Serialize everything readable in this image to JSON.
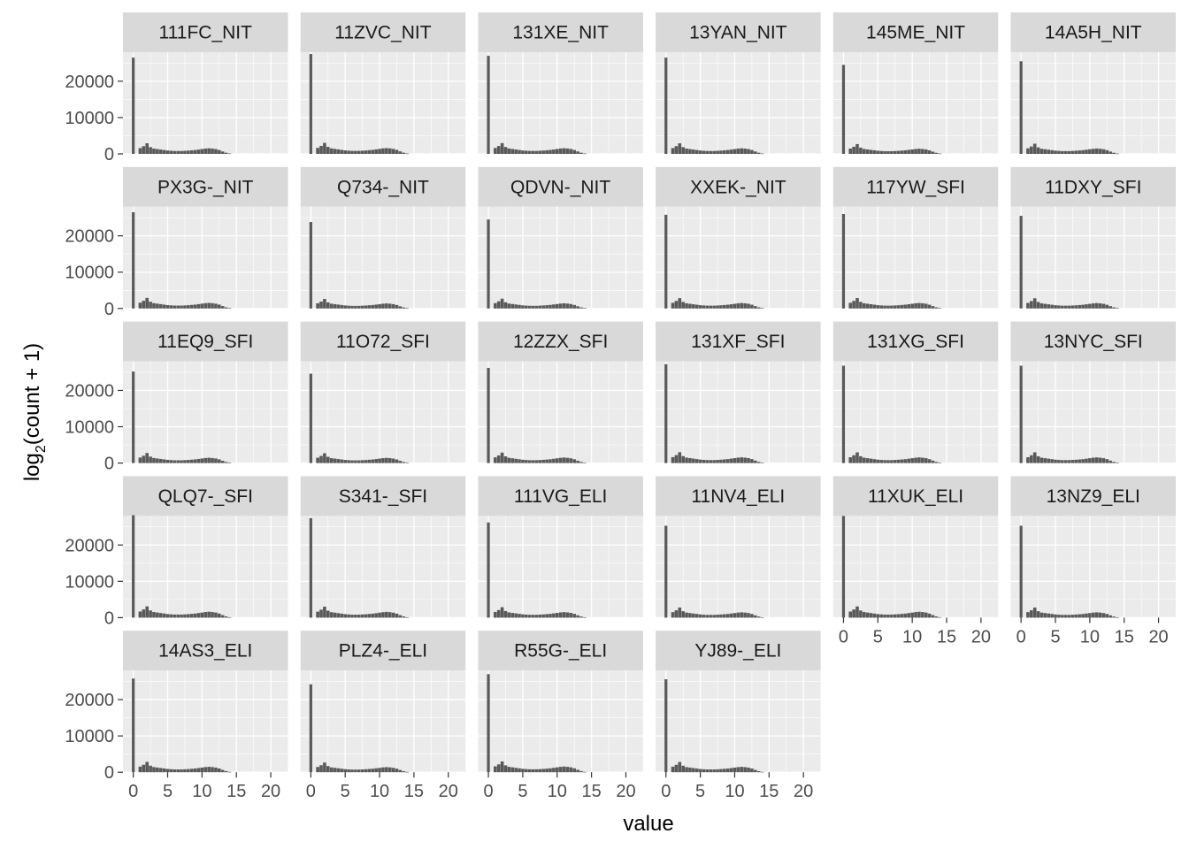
{
  "chart_data": {
    "type": "bar",
    "chart_kind": "faceted histogram",
    "xlabel": "value",
    "ylabel_base": "log",
    "ylabel_subscript": "2",
    "ylabel_rest": "(count + 1)",
    "x_ticks": [
      "0",
      "5",
      "10",
      "15",
      "20"
    ],
    "y_ticks": [
      "0",
      "10000",
      "20000"
    ],
    "xlim": [
      -1.5,
      22.5
    ],
    "ylim": [
      0,
      28000
    ],
    "facet_layout": "5 rows x 6 columns (28 panels)",
    "colors": {
      "bar": "#595959",
      "panel_bg": "#ebebeb",
      "strip_bg": "#d9d9d9",
      "grid": "#ffffff"
    },
    "bins": [
      0,
      1,
      1.5,
      2,
      2.5,
      3,
      3.5,
      4,
      4.5,
      5,
      5.5,
      6,
      6.5,
      7,
      7.5,
      8,
      8.5,
      9,
      9.5,
      10,
      10.5,
      11,
      11.5,
      12,
      12.5,
      13,
      13.5,
      14
    ],
    "shape": [
      1,
      0.06,
      0.08,
      0.11,
      0.07,
      0.055,
      0.05,
      0.045,
      0.04,
      0.035,
      0.032,
      0.03,
      0.03,
      0.03,
      0.032,
      0.034,
      0.037,
      0.04,
      0.045,
      0.05,
      0.055,
      0.058,
      0.055,
      0.05,
      0.04,
      0.025,
      0.012,
      0.004
    ],
    "panels": [
      {
        "name": "111FC_NIT",
        "peak": 26500
      },
      {
        "name": "11ZVC_NIT",
        "peak": 27500
      },
      {
        "name": "131XE_NIT",
        "peak": 27000
      },
      {
        "name": "13YAN_NIT",
        "peak": 26500
      },
      {
        "name": "145ME_NIT",
        "peak": 24500
      },
      {
        "name": "14A5H_NIT",
        "peak": 25500
      },
      {
        "name": "PX3G-_NIT",
        "peak": 26500
      },
      {
        "name": "Q734-_NIT",
        "peak": 23800
      },
      {
        "name": "QDVN-_NIT",
        "peak": 24500
      },
      {
        "name": "XXEK-_NIT",
        "peak": 25800
      },
      {
        "name": "117YW_SFI",
        "peak": 26000
      },
      {
        "name": "11DXY_SFI",
        "peak": 25500
      },
      {
        "name": "11EQ9_SFI",
        "peak": 25200
      },
      {
        "name": "11O72_SFI",
        "peak": 24600
      },
      {
        "name": "12ZZX_SFI",
        "peak": 26200
      },
      {
        "name": "131XF_SFI",
        "peak": 27200
      },
      {
        "name": "131XG_SFI",
        "peak": 26800
      },
      {
        "name": "13NYC_SFI",
        "peak": 26800
      },
      {
        "name": "QLQ7-_SFI",
        "peak": 28200
      },
      {
        "name": "S341-_SFI",
        "peak": 27400
      },
      {
        "name": "111VG_ELI",
        "peak": 26200
      },
      {
        "name": "11NV4_ELI",
        "peak": 25300
      },
      {
        "name": "11XUK_ELI",
        "peak": 28000
      },
      {
        "name": "13NZ9_ELI",
        "peak": 25300
      },
      {
        "name": "14AS3_ELI",
        "peak": 25800
      },
      {
        "name": "PLZ4-_ELI",
        "peak": 24200
      },
      {
        "name": "R55G-_ELI",
        "peak": 27000
      },
      {
        "name": "YJ89-_ELI",
        "peak": 25600
      }
    ]
  }
}
